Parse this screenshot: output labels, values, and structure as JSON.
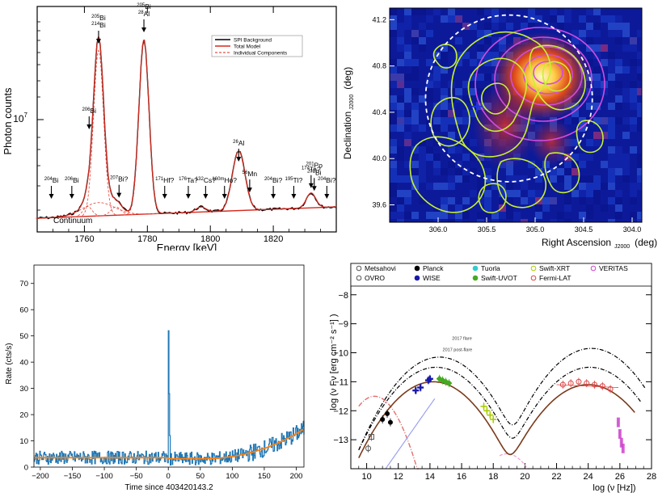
{
  "chart_data": [
    {
      "id": "spi",
      "type": "line",
      "ylabel": "Photon counts",
      "xlabel": "Energy [keV]",
      "xlim": [
        1745,
        1840
      ],
      "xticks": [
        1760,
        1780,
        1800,
        1820
      ],
      "ytick_label": "10",
      "ytick_exp": "7",
      "legend": [
        "SPI Background",
        "Total Model",
        "Individual Components"
      ],
      "legend_position": "top-right",
      "continuum_label": "Continuum",
      "peaks": [
        {
          "x": 1764.5,
          "h": 1.0,
          "w": 1.6
        },
        {
          "x": 1778.9,
          "h": 1.05,
          "w": 1.6
        },
        {
          "x": 1764.5,
          "h": 0.08,
          "w": 5.0
        },
        {
          "x": 1809.0,
          "h": 0.36,
          "w": 2.0
        },
        {
          "x": 1761.0,
          "h": 0.06,
          "w": 1.4
        },
        {
          "x": 1832.0,
          "h": 0.09,
          "w": 1.5
        },
        {
          "x": 1770.0,
          "h": 0.05,
          "w": 1.6
        },
        {
          "x": 1797.0,
          "h": 0.03,
          "w": 1.6
        }
      ],
      "annotations": [
        {
          "x": 1749.5,
          "iso": "204",
          "el": "Bi"
        },
        {
          "x": 1756.0,
          "iso": "206",
          "el": "Bi"
        },
        {
          "x": 1764.5,
          "iso": "205",
          "el": "Bi",
          "iso2": "214",
          "el2": "Bi"
        },
        {
          "x": 1761.5,
          "iso": "206",
          "el": "Bi"
        },
        {
          "x": 1771.0,
          "iso": "207",
          "el": "Bi?"
        },
        {
          "x": 1778.9,
          "iso": "205",
          "el": "Bi",
          "iso2": "28",
          "el2": "Al"
        },
        {
          "x": 1785.5,
          "iso": "171",
          "el": "Hf?"
        },
        {
          "x": 1793.0,
          "iso": "176",
          "el": "Ta?"
        },
        {
          "x": 1798.5,
          "iso": "132",
          "el": "Cs?"
        },
        {
          "x": 1804.5,
          "iso": "160m",
          "el": "Ho?"
        },
        {
          "x": 1809.0,
          "iso": "26",
          "el": "Al"
        },
        {
          "x": 1812.5,
          "iso": "56",
          "el": "Mn"
        },
        {
          "x": 1820.0,
          "iso": "204",
          "el": "Bi?"
        },
        {
          "x": 1826.5,
          "iso": "195",
          "el": "Tl?"
        },
        {
          "x": 1832.0,
          "iso": "174",
          "el": "Ta?"
        },
        {
          "x": 1833.0,
          "iso": "202",
          "el": "Bi"
        },
        {
          "x": 1833.0,
          "iso": "201",
          "el": "Po"
        },
        {
          "x": 1837.0,
          "iso": "204",
          "el": "Bi?"
        }
      ]
    },
    {
      "id": "map",
      "type": "heatmap",
      "xlabel": "Right Ascension",
      "xlabel_sub": "J2000",
      "xlabel_unit": "(deg)",
      "ylabel": "Declination",
      "ylabel_sub": "J2000",
      "ylabel_unit": "(deg)",
      "xlim": [
        306.5,
        303.9
      ],
      "ylim": [
        39.45,
        41.3
      ],
      "xticks": [
        306.0,
        305.5,
        305.0,
        304.5,
        304.0
      ],
      "xtick_labels": [
        "306.0",
        "305.5",
        "305.0",
        "304.5",
        "304.0"
      ],
      "yticks": [
        39.6,
        40.0,
        40.4,
        40.8,
        41.2
      ],
      "ytick_labels": [
        "39.6",
        "40.0",
        "40.4",
        "40.8",
        "41.2"
      ],
      "circle_center": [
        305.27,
        40.52
      ],
      "circle_radius_deg": 0.72,
      "source_position": [
        305.6,
        40.45
      ]
    },
    {
      "id": "lightcurve",
      "type": "line",
      "ylabel": "Rate (cts/s)",
      "xlabel": "Time since 403420143.2",
      "xlim": [
        -210,
        212
      ],
      "ylim": [
        0,
        77
      ],
      "xticks": [
        -200,
        -150,
        -100,
        -50,
        0,
        50,
        100,
        150,
        200
      ],
      "yticks": [
        0,
        10,
        20,
        30,
        40,
        50,
        60,
        70
      ],
      "spike_x": 0,
      "spike_peak": 52,
      "series_color": "#1f77b4",
      "fit_color": "#ff7f0e"
    },
    {
      "id": "sed",
      "type": "scatter",
      "ylabel": "log (ν Fν [erg cm⁻² s⁻¹] )",
      "xlabel": "log (ν [Hz])",
      "xlim": [
        9,
        28
      ],
      "ylim": [
        -14,
        -7.2
      ],
      "xticks": [
        10,
        12,
        14,
        16,
        18,
        20,
        22,
        24,
        26,
        28
      ],
      "yticks": [
        -13,
        -12,
        -11,
        -10,
        -9,
        -8
      ],
      "legend": [
        {
          "name": "Metsahovi",
          "color": "#555555"
        },
        {
          "name": "Planck",
          "color": "#000000"
        },
        {
          "name": "Tuorla",
          "color": "#33cccc"
        },
        {
          "name": "Swift-XRT",
          "color": "#aacc00"
        },
        {
          "name": "VERITAS",
          "color": "#cc44cc"
        },
        {
          "name": "OVRO",
          "color": "#555555"
        },
        {
          "name": "WISE",
          "color": "#1a1aaa"
        },
        {
          "name": "Swift-UVOT",
          "color": "#44aa22"
        },
        {
          "name": "Fermi-LAT",
          "color": "#dd4444"
        }
      ],
      "legend_position": "top",
      "flare_label": "2017 flare",
      "postflare_label": "2017 post-flare",
      "data_points": {
        "Metsahovi": [
          [
            10.1,
            -13.3
          ]
        ],
        "OVRO": [
          [
            10.3,
            -12.9
          ]
        ],
        "Planck": [
          [
            11.0,
            -12.3
          ],
          [
            11.3,
            -12.1
          ],
          [
            11.5,
            -12.4
          ]
        ],
        "WISE": [
          [
            13.1,
            -11.3
          ],
          [
            13.4,
            -11.2
          ],
          [
            13.9,
            -10.95
          ],
          [
            14.0,
            -10.9
          ]
        ],
        "Swift-UVOT": [
          [
            14.6,
            -10.9
          ],
          [
            14.8,
            -10.95
          ],
          [
            15.0,
            -11.0
          ],
          [
            15.2,
            -11.05
          ]
        ],
        "Swift-XRT": [
          [
            17.4,
            -11.85
          ],
          [
            17.6,
            -12.0
          ],
          [
            17.8,
            -12.15
          ],
          [
            18.0,
            -12.3
          ]
        ],
        "Fermi-LAT": [
          [
            22.4,
            -11.1
          ],
          [
            22.9,
            -11.05
          ],
          [
            23.4,
            -11.0
          ],
          [
            23.9,
            -11.05
          ],
          [
            24.4,
            -11.1
          ],
          [
            24.9,
            -11.15
          ],
          [
            25.4,
            -11.25
          ]
        ],
        "VERITAS": [
          [
            25.9,
            -12.4
          ],
          [
            26.0,
            -12.8
          ],
          [
            26.1,
            -13.1
          ],
          [
            26.2,
            -13.3
          ]
        ]
      }
    }
  ]
}
